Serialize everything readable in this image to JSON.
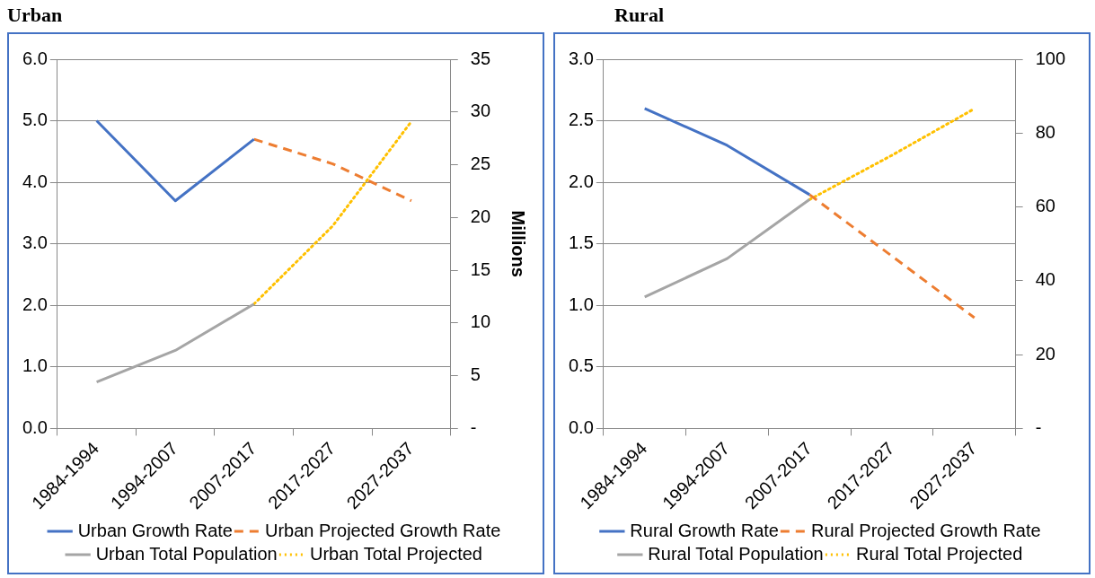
{
  "chart_data": [
    {
      "type": "line",
      "title": "Urban",
      "y2label": "Millions",
      "categories": [
        "1984-1994",
        "1994-2007",
        "2007-2017",
        "2017-2027",
        "2027-2037"
      ],
      "series": [
        {
          "name": "Urban Growth Rate",
          "color": "#4472c4",
          "line_style": "solid",
          "values": [
            5.0,
            3.7,
            4.7,
            null,
            null
          ]
        },
        {
          "name": "Urban Projected Growth Rate",
          "color": "#ed7d31",
          "line_style": "dashed",
          "values": [
            null,
            null,
            4.7,
            4.3,
            3.7
          ]
        },
        {
          "name": "Urban Total Population",
          "color": "#a5a5a5",
          "line_style": "solid",
          "axis": "y2",
          "values": [
            4.4,
            7.4,
            11.8,
            null,
            null
          ]
        },
        {
          "name": "Urban Total Projected",
          "color": "#ffc000",
          "line_style": "dotted",
          "axis": "y2",
          "values": [
            null,
            null,
            11.8,
            19.2,
            29.1
          ]
        }
      ],
      "ylim": [
        0,
        6
      ],
      "yticks": [
        {
          "value": 0,
          "label": "0.0"
        },
        {
          "value": 1,
          "label": "1.0"
        },
        {
          "value": 2,
          "label": "2.0"
        },
        {
          "value": 3,
          "label": "3.0"
        },
        {
          "value": 4,
          "label": "4.0"
        },
        {
          "value": 5,
          "label": "5.0"
        },
        {
          "value": 6,
          "label": "6.0"
        }
      ],
      "y2lim": [
        0,
        35
      ],
      "y2ticks": [
        {
          "value": 0,
          "label": "-"
        },
        5,
        10,
        15,
        20,
        25,
        30,
        35
      ],
      "grid": "y",
      "legend": "bottom",
      "marker": "none"
    },
    {
      "type": "line",
      "title": "Rural",
      "categories": [
        "1984-1994",
        "1994-2007",
        "2007-2017",
        "2017-2027",
        "2027-2037"
      ],
      "series": [
        {
          "name": "Rural Growth Rate",
          "color": "#4472c4",
          "line_style": "solid",
          "values": [
            2.6,
            2.3,
            1.9,
            null,
            null
          ]
        },
        {
          "name": "Rural Projected Growth Rate",
          "color": "#ed7d31",
          "line_style": "dashed",
          "values": [
            null,
            null,
            1.9,
            1.4,
            0.9
          ]
        },
        {
          "name": "Rural Total Population",
          "color": "#a5a5a5",
          "line_style": "solid",
          "axis": "y2",
          "values": [
            35.6,
            46,
            62,
            null,
            null
          ]
        },
        {
          "name": "Rural Total Projected",
          "color": "#ffc000",
          "line_style": "dotted",
          "axis": "y2",
          "values": [
            null,
            null,
            62,
            74,
            86.6
          ]
        }
      ],
      "ylim": [
        0,
        3
      ],
      "yticks": [
        {
          "value": 0,
          "label": "0.0"
        },
        {
          "value": 0.5,
          "label": "0.5"
        },
        {
          "value": 1,
          "label": "1.0"
        },
        {
          "value": 1.5,
          "label": "1.5"
        },
        {
          "value": 2,
          "label": "2.0"
        },
        {
          "value": 2.5,
          "label": "2.5"
        },
        {
          "value": 3,
          "label": "3.0"
        }
      ],
      "y2lim": [
        0,
        100
      ],
      "y2ticks": [
        {
          "value": 0,
          "label": "-"
        },
        20,
        40,
        60,
        80,
        100
      ],
      "grid": "y",
      "legend": "bottom",
      "marker": "none"
    }
  ]
}
